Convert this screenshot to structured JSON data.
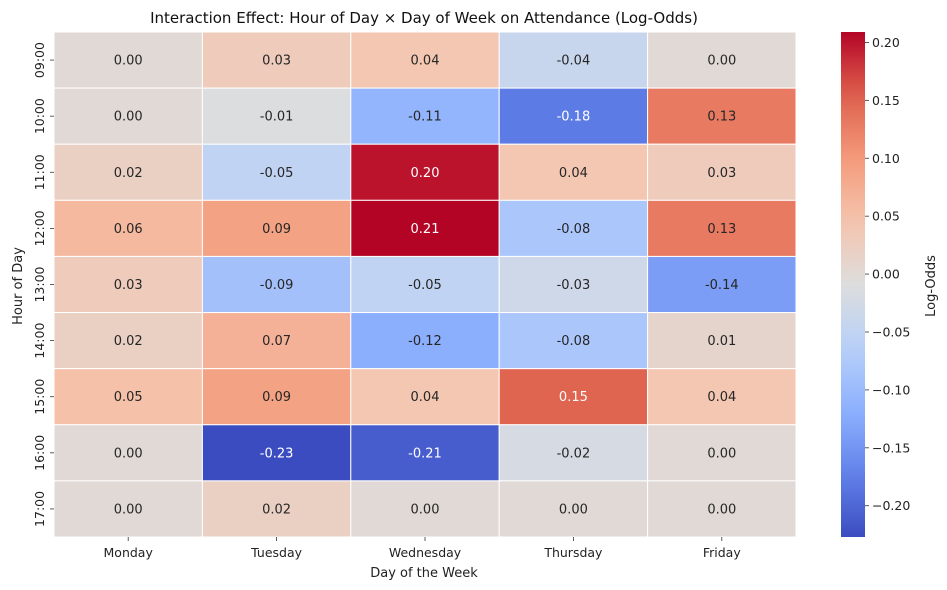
{
  "chart_data": {
    "type": "heatmap",
    "title": "Interaction Effect: Hour of Day × Day of Week on Attendance (Log-Odds)",
    "xlabel": "Day of the Week",
    "ylabel": "Hour of Day",
    "x_categories": [
      "Monday",
      "Tuesday",
      "Wednesday",
      "Thursday",
      "Friday"
    ],
    "y_categories": [
      "09:00",
      "10:00",
      "11:00",
      "12:00",
      "13:00",
      "14:00",
      "15:00",
      "16:00",
      "17:00"
    ],
    "values": [
      [
        0.0,
        0.03,
        0.04,
        -0.04,
        0.0
      ],
      [
        0.0,
        -0.01,
        -0.11,
        -0.18,
        0.13
      ],
      [
        0.02,
        -0.05,
        0.2,
        0.04,
        0.03
      ],
      [
        0.06,
        0.09,
        0.21,
        -0.08,
        0.13
      ],
      [
        0.03,
        -0.09,
        -0.05,
        -0.03,
        -0.14
      ],
      [
        0.02,
        0.07,
        -0.12,
        -0.08,
        0.01
      ],
      [
        0.05,
        0.09,
        0.04,
        0.15,
        0.04
      ],
      [
        0.0,
        -0.23,
        -0.21,
        -0.02,
        0.0
      ],
      [
        0.0,
        0.02,
        0.0,
        0.0,
        0.0
      ]
    ],
    "cell_labels": [
      [
        "0.00",
        "0.03",
        "0.04",
        "-0.04",
        "0.00"
      ],
      [
        "0.00",
        "-0.01",
        "-0.11",
        "-0.18",
        "0.13"
      ],
      [
        "0.02",
        "-0.05",
        "0.20",
        "0.04",
        "0.03"
      ],
      [
        "0.06",
        "0.09",
        "0.21",
        "-0.08",
        "0.13"
      ],
      [
        "0.03",
        "-0.09",
        "-0.05",
        "-0.03",
        "-0.14"
      ],
      [
        "0.02",
        "0.07",
        "-0.12",
        "-0.08",
        "0.01"
      ],
      [
        "0.05",
        "0.09",
        "0.04",
        "0.15",
        "0.04"
      ],
      [
        "0.00",
        "-0.23",
        "-0.21",
        "-0.02",
        "0.00"
      ],
      [
        "0.00",
        "0.02",
        "0.00",
        "0.00",
        "0.00"
      ]
    ],
    "colormap": "coolwarm",
    "vmin": -0.227,
    "vmax": 0.209,
    "colorbar": {
      "label": "Log-Odds",
      "ticks": [
        0.2,
        0.15,
        0.1,
        0.05,
        0.0,
        -0.05,
        -0.1,
        -0.15,
        -0.2
      ],
      "tick_labels": [
        "0.20",
        "0.15",
        "0.10",
        "0.05",
        "0.00",
        "−0.05",
        "−0.10",
        "−0.15",
        "−0.20"
      ]
    },
    "grid": false,
    "cell_border_color": "#ffffff"
  }
}
